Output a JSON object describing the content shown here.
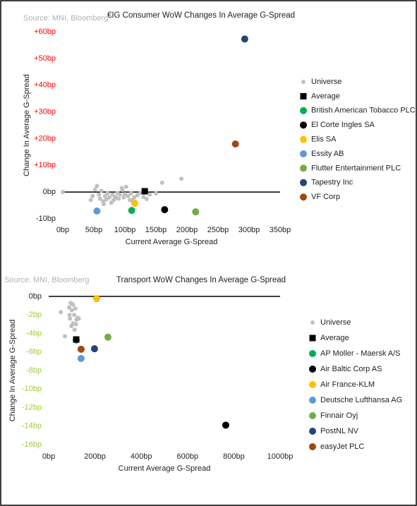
{
  "chart_data": [
    {
      "type": "scatter",
      "title": "€IG Consumer WoW Changes In Average G-Spread",
      "source": "Source: MNI, Bloomberg",
      "x_label": "Current Average G-Spread",
      "y_label": "Change In Average G-Spread",
      "xlim": [
        0,
        350
      ],
      "ylim": [
        -10,
        60
      ],
      "xticks": [
        {
          "value": 0,
          "label": "0bp"
        },
        {
          "value": 50,
          "label": "50bp"
        },
        {
          "value": 100,
          "label": "100bp"
        },
        {
          "value": 150,
          "label": "150bp"
        },
        {
          "value": 200,
          "label": "200bp"
        },
        {
          "value": 250,
          "label": "250bp"
        },
        {
          "value": 300,
          "label": "300bp"
        },
        {
          "value": 350,
          "label": "350bp"
        }
      ],
      "yticks": [
        {
          "value": -10,
          "label": "-10bp"
        },
        {
          "value": 0,
          "label": "0bp"
        },
        {
          "value": 10,
          "label": "+10bp"
        },
        {
          "value": 20,
          "label": "+20bp"
        },
        {
          "value": 30,
          "label": "+30bp"
        },
        {
          "value": 40,
          "label": "+40bp"
        },
        {
          "value": 50,
          "label": "+50bp"
        },
        {
          "value": 60,
          "label": "+60bp"
        }
      ],
      "positive_tick_color": "#ff0000",
      "legend": "right",
      "series": [
        {
          "name": "Universe",
          "color": "#c0c0c0",
          "marker": "dot",
          "x": [
            45,
            52,
            55,
            58,
            60,
            62,
            65,
            68,
            70,
            72,
            75,
            78,
            80,
            82,
            85,
            88,
            90,
            92,
            95,
            98,
            100,
            102,
            105,
            108,
            110,
            115,
            120,
            125,
            130,
            140,
            150,
            160,
            191,
            0,
            48,
            66,
            84,
            96,
            112,
            135
          ],
          "values": [
            -3,
            1,
            2.3,
            -1,
            -2.5,
            0.5,
            -3.5,
            -1.5,
            -2.8,
            -0.5,
            -2,
            -4,
            -1,
            -3,
            -1.8,
            -0.3,
            -2.5,
            -1,
            1.5,
            -2,
            -0.8,
            2,
            -1.5,
            -3,
            -0.5,
            -2,
            -1.2,
            -0.3,
            -1.8,
            -1,
            -0.5,
            3.5,
            5,
            0,
            -1.5,
            -4.5,
            -2.2,
            0.8,
            -3.2,
            -2.6
          ]
        },
        {
          "name": "Average",
          "color": "#000000",
          "marker": "square",
          "x": [
            132
          ],
          "values": [
            0.3
          ]
        },
        {
          "name": "British American Tobacco PLC",
          "color": "#00b050",
          "marker": "circle",
          "x": [
            111
          ],
          "values": [
            -6.9
          ]
        },
        {
          "name": "El Corte Ingles SA",
          "color": "#000000",
          "marker": "circle",
          "x": [
            164
          ],
          "values": [
            -6.6
          ]
        },
        {
          "name": "Elis SA",
          "color": "#ffc000",
          "marker": "circle",
          "x": [
            116
          ],
          "values": [
            -4.2
          ]
        },
        {
          "name": "Essity AB",
          "color": "#5b9bd5",
          "marker": "circle",
          "x": [
            55
          ],
          "values": [
            -7.1
          ]
        },
        {
          "name": "Flutter Entertainment PLC",
          "color": "#70ad47",
          "marker": "circle",
          "x": [
            214
          ],
          "values": [
            -7.4
          ]
        },
        {
          "name": "Tapestry Inc",
          "color": "#264478",
          "marker": "circle",
          "x": [
            293
          ],
          "values": [
            57.3
          ]
        },
        {
          "name": "VF Corp",
          "color": "#9e480e",
          "marker": "circle",
          "x": [
            278
          ],
          "values": [
            18
          ]
        }
      ]
    },
    {
      "type": "scatter",
      "title": "Transport WoW Changes In Average G-Spread",
      "source": "Source: MNI, Bloomberg",
      "x_label": "Current Average G-Spread",
      "y_label": "Change In Average G-Spread",
      "xlim": [
        0,
        1000
      ],
      "ylim": [
        -16,
        0
      ],
      "xticks": [
        {
          "value": 0,
          "label": "0bp"
        },
        {
          "value": 200,
          "label": "200bp"
        },
        {
          "value": 400,
          "label": "400bp"
        },
        {
          "value": 600,
          "label": "600bp"
        },
        {
          "value": 800,
          "label": "800bp"
        },
        {
          "value": 1000,
          "label": "1000bp"
        }
      ],
      "yticks": [
        {
          "value": -16,
          "label": "-16bp"
        },
        {
          "value": -14,
          "label": "-14bp"
        },
        {
          "value": -12,
          "label": "-12bp"
        },
        {
          "value": -10,
          "label": "-10bp"
        },
        {
          "value": -8,
          "label": "-8bp"
        },
        {
          "value": -6,
          "label": "-6bp"
        },
        {
          "value": -4,
          "label": "-4bp"
        },
        {
          "value": -2,
          "label": "-2bp"
        },
        {
          "value": 0,
          "label": "0bp"
        }
      ],
      "negative_tick_color": "#9acd32",
      "legend": "right",
      "series": [
        {
          "name": "Universe",
          "color": "#c0c0c0",
          "marker": "dot",
          "x": [
            52,
            70,
            88,
            95,
            100,
            105,
            92,
            110,
            115,
            120,
            98,
            105,
            125,
            130,
            100,
            90,
            112,
            118
          ],
          "values": [
            -1.7,
            -4.3,
            -1.2,
            -0.7,
            -1.5,
            -0.9,
            -2.4,
            -2.0,
            -1.3,
            -2.5,
            -3.2,
            -2.9,
            -2.3,
            -2.4,
            -0.8,
            -2.0,
            -3.6,
            -3.0
          ]
        },
        {
          "name": "Average",
          "color": "#000000",
          "marker": "square",
          "x": [
            119
          ],
          "values": [
            -4.65
          ]
        },
        {
          "name": "AP Moller - Maersk A/S",
          "color": "#00b050",
          "marker": "circle",
          "x": [
            119
          ],
          "values": [
            -4.7
          ]
        },
        {
          "name": "Air Baltic Corp AS",
          "color": "#000000",
          "marker": "circle",
          "x": [
            765
          ],
          "values": [
            -13.9
          ]
        },
        {
          "name": "Air France-KLM",
          "color": "#ffc000",
          "marker": "circle",
          "x": [
            207
          ],
          "values": [
            -0.25
          ]
        },
        {
          "name": "Deutsche Lufthansa AG",
          "color": "#5b9bd5",
          "marker": "circle",
          "x": [
            140
          ],
          "values": [
            -6.7
          ]
        },
        {
          "name": "Finnair Oyj",
          "color": "#70ad47",
          "marker": "circle",
          "x": [
            256
          ],
          "values": [
            -4.4
          ]
        },
        {
          "name": "PostNL NV",
          "color": "#264478",
          "marker": "circle",
          "x": [
            198
          ],
          "values": [
            -5.65
          ]
        },
        {
          "name": "easyJet PLC",
          "color": "#9e480e",
          "marker": "circle",
          "x": [
            140
          ],
          "values": [
            -5.7
          ]
        }
      ]
    }
  ]
}
